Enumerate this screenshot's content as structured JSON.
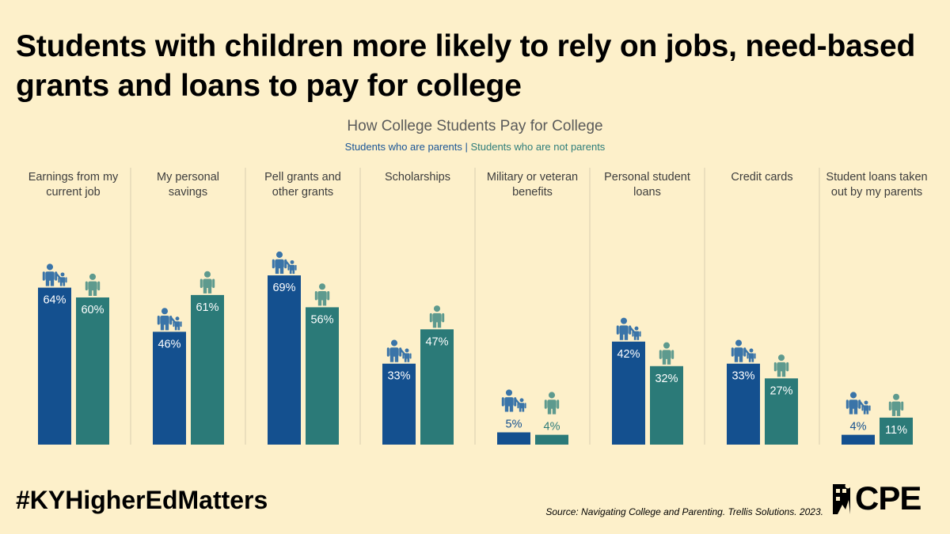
{
  "headline": "Students with children more likely to rely on jobs, need-based grants and loans to pay for college",
  "hashtag": "#KYHigherEdMatters",
  "source": "Source: Navigating College and Parenting. Trellis Solutions. 2023.",
  "logo_text": "CPE",
  "colors": {
    "background": "#fdf0ca",
    "parents": "#14508f",
    "non_parents": "#2b7a78",
    "parents_icon": "#3a74a8",
    "non_parents_icon": "#5e9a8e",
    "divider": "#d9ceb0"
  },
  "icons": {
    "parents": "parent-with-child-icon",
    "non_parents": "single-person-icon"
  },
  "chart_data": {
    "type": "bar",
    "title": "How College Students Pay for College",
    "legend": [
      "Students who are parents",
      "Students who are not parents"
    ],
    "legend_separator": "|",
    "legend_placement": "top-center",
    "categories": [
      [
        "Earnings from my",
        "current job"
      ],
      [
        "My personal",
        "savings"
      ],
      [
        "Pell grants and",
        "other grants"
      ],
      [
        "Scholarships"
      ],
      [
        "Military or veteran",
        "benefits"
      ],
      [
        "Personal student",
        "loans"
      ],
      [
        "Credit cards"
      ],
      [
        "Student loans taken",
        "out by my parents"
      ]
    ],
    "series": [
      {
        "name": "Students who are parents",
        "values": [
          64,
          46,
          69,
          33,
          5,
          42,
          33,
          4
        ]
      },
      {
        "name": "Students who are not parents",
        "values": [
          60,
          61,
          56,
          47,
          4,
          32,
          27,
          11
        ]
      }
    ],
    "value_suffix": "%",
    "ylim": [
      0,
      100
    ],
    "grid": false
  }
}
